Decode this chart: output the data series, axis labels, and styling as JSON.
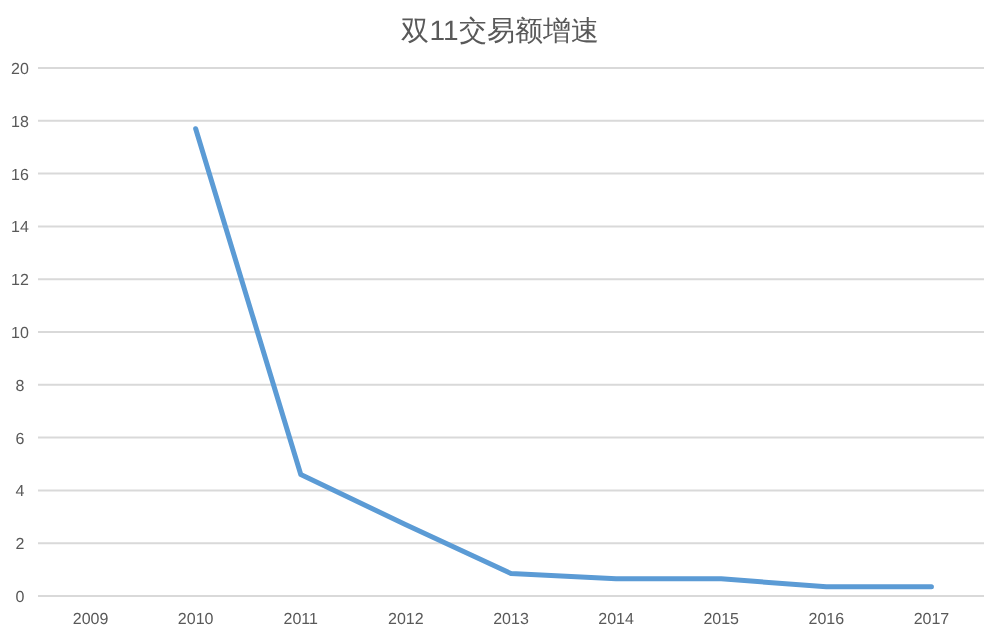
{
  "chart_data": {
    "type": "line",
    "title": "双11交易额增速",
    "categories": [
      "2009",
      "2010",
      "2011",
      "2012",
      "2013",
      "2014",
      "2015",
      "2016",
      "2017"
    ],
    "series": [
      {
        "color": "#5b9bd5",
        "values": [
          null,
          17.7,
          4.6,
          2.7,
          0.85,
          0.65,
          0.65,
          0.35,
          0.35
        ]
      }
    ],
    "ylim": [
      0,
      20
    ],
    "yticks": [
      0,
      2,
      4,
      6,
      8,
      10,
      12,
      14,
      16,
      18,
      20
    ],
    "grid": "y",
    "marker": "none",
    "line_style": "solid"
  }
}
